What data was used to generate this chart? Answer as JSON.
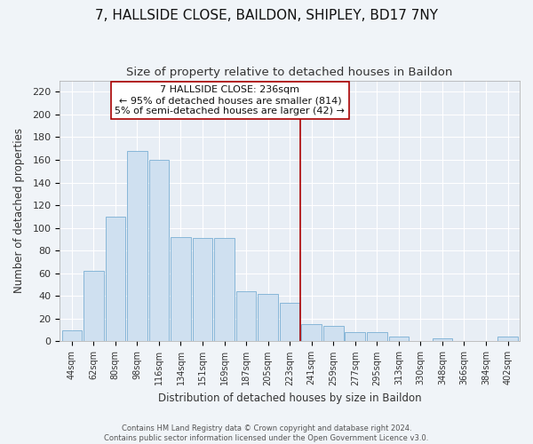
{
  "title": "7, HALLSIDE CLOSE, BAILDON, SHIPLEY, BD17 7NY",
  "subtitle": "Size of property relative to detached houses in Baildon",
  "xlabel": "Distribution of detached houses by size in Baildon",
  "ylabel": "Number of detached properties",
  "categories": [
    "44sqm",
    "62sqm",
    "80sqm",
    "98sqm",
    "116sqm",
    "134sqm",
    "151sqm",
    "169sqm",
    "187sqm",
    "205sqm",
    "223sqm",
    "241sqm",
    "259sqm",
    "277sqm",
    "295sqm",
    "313sqm",
    "330sqm",
    "348sqm",
    "366sqm",
    "384sqm",
    "402sqm"
  ],
  "values": [
    10,
    62,
    110,
    168,
    160,
    92,
    91,
    91,
    44,
    42,
    34,
    15,
    14,
    8,
    8,
    4,
    0,
    3,
    0,
    0,
    4
  ],
  "bar_color": "#cfe0f0",
  "bar_edge_color": "#7aafd4",
  "vline_x_index": 11,
  "vline_color": "#aa0000",
  "ylim": [
    0,
    230
  ],
  "yticks": [
    0,
    20,
    40,
    60,
    80,
    100,
    120,
    140,
    160,
    180,
    200,
    220
  ],
  "annotation_text": "7 HALLSIDE CLOSE: 236sqm\n← 95% of detached houses are smaller (814)\n5% of semi-detached houses are larger (42) →",
  "footer_line1": "Contains HM Land Registry data © Crown copyright and database right 2024.",
  "footer_line2": "Contains public sector information licensed under the Open Government Licence v3.0.",
  "plot_bg_color": "#e8eef5",
  "fig_bg_color": "#f0f4f8",
  "title_fontsize": 11,
  "subtitle_fontsize": 9.5,
  "grid_color": "#ffffff"
}
